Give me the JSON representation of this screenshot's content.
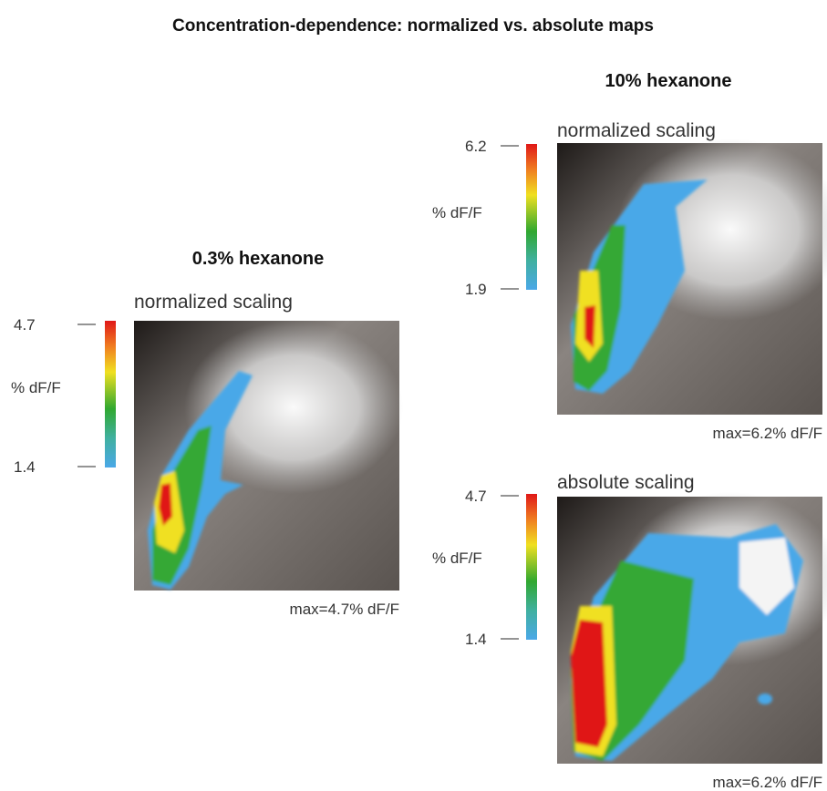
{
  "title": "Concentration-dependence: normalized vs. absolute maps",
  "panels": [
    {
      "heading": "0.3% hexanone",
      "maps": [
        {
          "scaling": "normalized scaling",
          "colorbar": {
            "max": "4.7",
            "unit": "% dF/F",
            "min": "1.4"
          },
          "caption": "max=4.7% dF/F"
        }
      ]
    },
    {
      "heading": "10% hexanone",
      "maps": [
        {
          "scaling": "normalized scaling",
          "colorbar": {
            "max": "6.2",
            "unit": "% dF/F",
            "min": "1.9"
          },
          "caption": "max=6.2% dF/F"
        },
        {
          "scaling": "absolute scaling",
          "colorbar": {
            "max": "4.7",
            "unit": "% dF/F",
            "min": "1.4"
          },
          "caption": "max=6.2% dF/F"
        }
      ]
    }
  ]
}
